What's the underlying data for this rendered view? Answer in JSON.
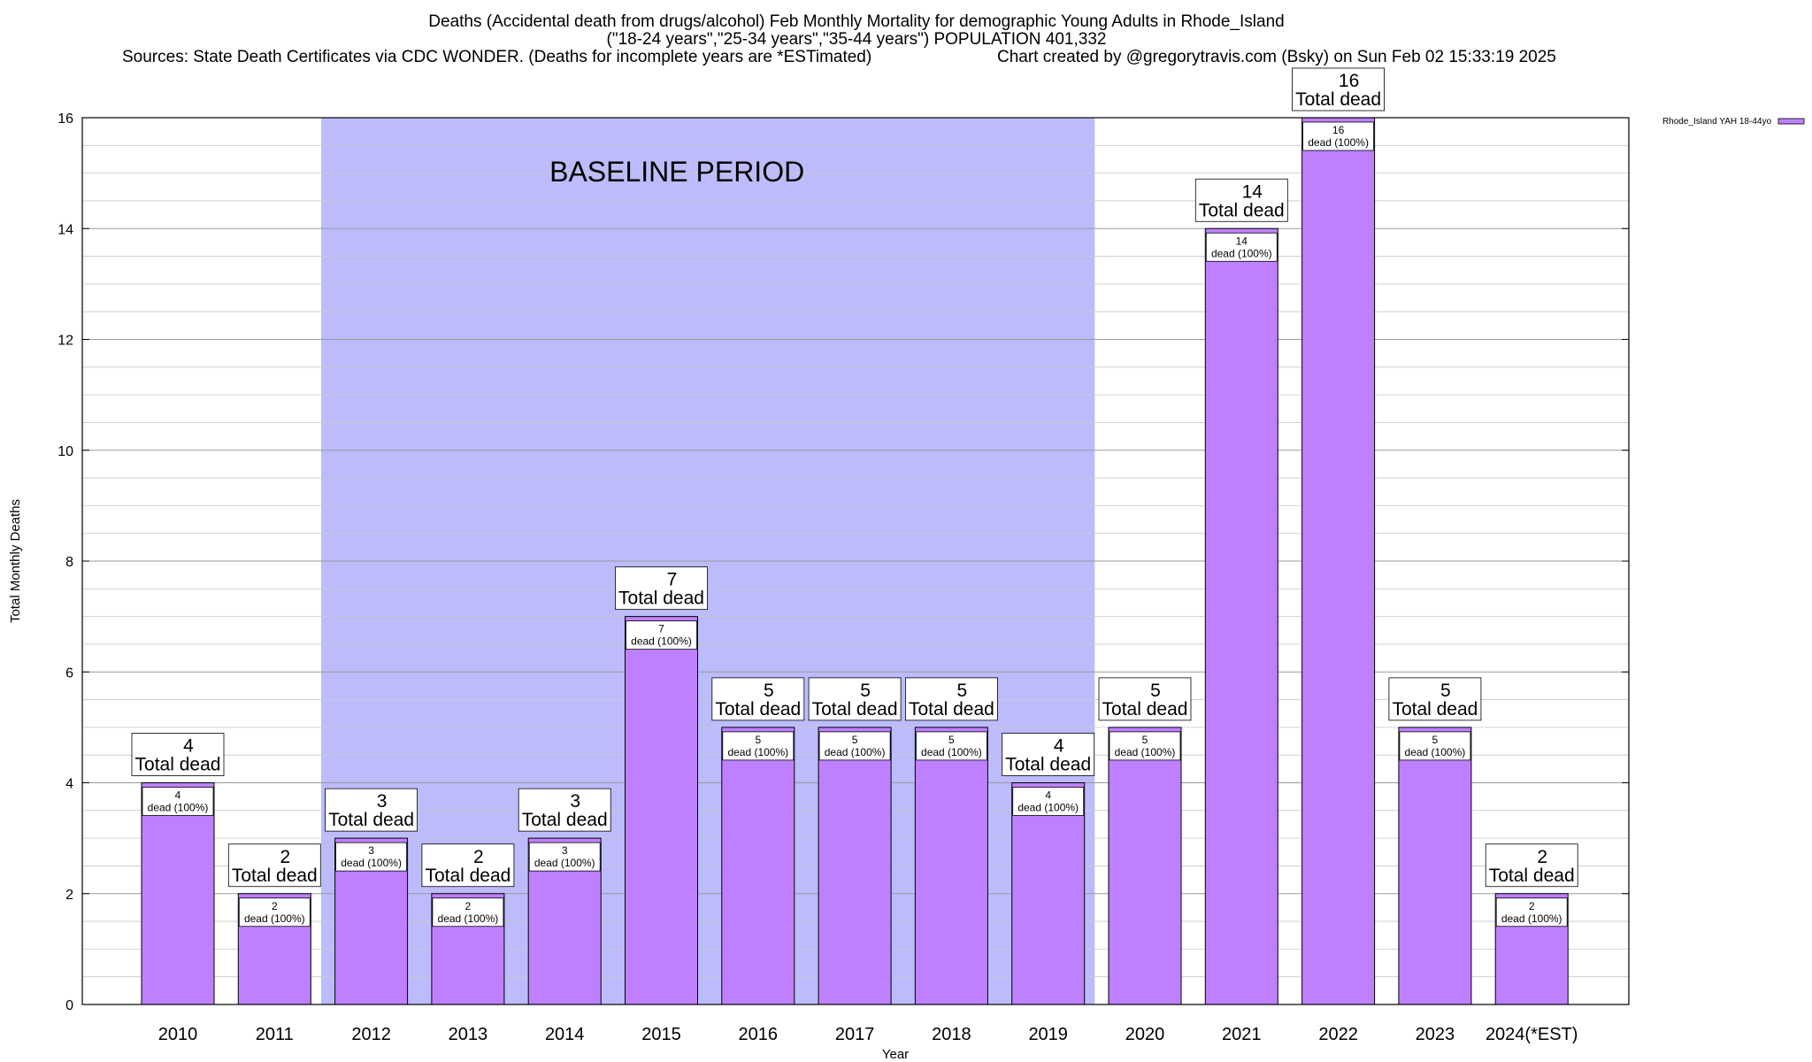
{
  "title": {
    "line1": "Deaths (Accidental death from drugs/alcohol) Feb Monthly Mortality for demographic Young Adults in Rhode_Island",
    "line2": "(\"18-24 years\",\"25-34 years\",\"35-44 years\") POPULATION 401,332",
    "line3_left": "Sources: State Death Certificates via CDC WONDER. (Deaths for incomplete years are *ESTimated)",
    "line3_right": "Chart created by @gregorytravis.com (Bsky) on Sun Feb 02 15:33:19 2025"
  },
  "colors": {
    "bar": "#bf80ff",
    "baseline_band": "#bcbcfc",
    "legend_swatch": "#bf80ff"
  },
  "chart_data": {
    "type": "bar",
    "categories": [
      "2010",
      "2011",
      "2012",
      "2013",
      "2014",
      "2015",
      "2016",
      "2017",
      "2018",
      "2019",
      "2020",
      "2021",
      "2022",
      "2023",
      "2024(*EST)"
    ],
    "series": [
      {
        "name": "Rhode_Island YAH 18-44yo",
        "values": [
          4,
          2,
          3,
          2,
          3,
          7,
          5,
          5,
          5,
          4,
          5,
          14,
          16,
          5,
          2
        ]
      }
    ],
    "top_labels": {
      "values": [
        "4",
        "2",
        "3",
        "2",
        "3",
        "7",
        "5",
        "5",
        "5",
        "4",
        "5",
        "14",
        "16",
        "5",
        "2"
      ],
      "caption": "Total dead"
    },
    "inner_labels": {
      "values": [
        "4",
        "2",
        "3",
        "2",
        "3",
        "7",
        "5",
        "5",
        "5",
        "4",
        "5",
        "14",
        "16",
        "5",
        "2"
      ],
      "caption": "dead (100%)"
    },
    "xlabel": "Year",
    "ylabel": "Total Monthly Deaths",
    "ylim": [
      0,
      16
    ],
    "yticks": [
      "0",
      "2",
      "4",
      "6",
      "8",
      "10",
      "12",
      "14",
      "16"
    ],
    "grid": true,
    "legend": "top-right",
    "annotations": {
      "baseline_band": {
        "from": "2012",
        "to": "2019",
        "label": "BASELINE PERIOD"
      }
    }
  }
}
